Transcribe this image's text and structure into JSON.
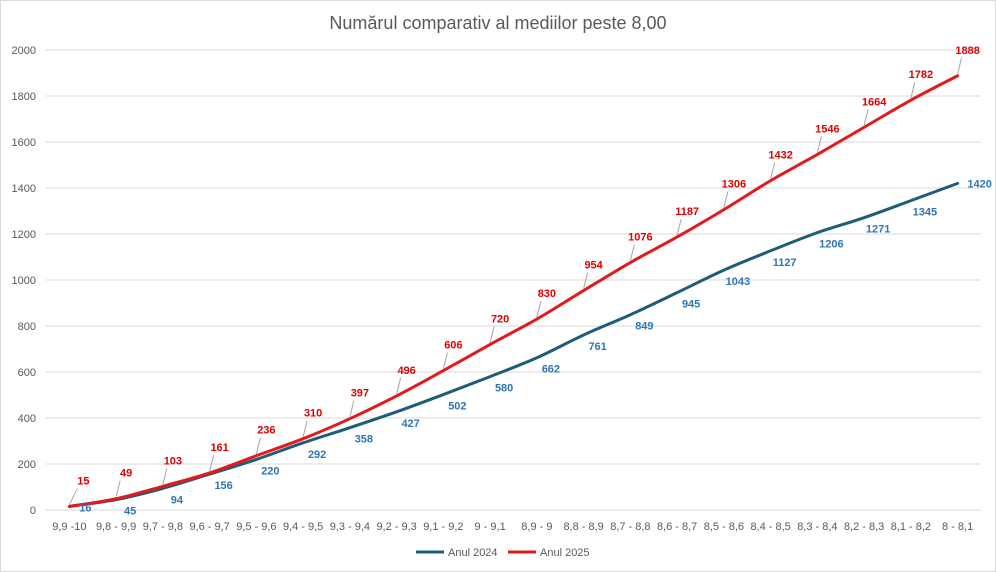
{
  "chart_data": {
    "type": "line",
    "title": "Numărul comparativ al mediilor peste 8,00",
    "xlabel": "",
    "ylabel": "",
    "ylim": [
      0,
      2000
    ],
    "yticks": [
      0,
      200,
      400,
      600,
      800,
      1000,
      1200,
      1400,
      1600,
      1800,
      2000
    ],
    "categories": [
      "9,9 -10",
      "9,8 - 9,9",
      "9,7 - 9,8",
      "9,6 - 9,7",
      "9,5 - 9,6",
      "9,4 - 9,5",
      "9,3 - 9,4",
      "9,2 - 9,3",
      "9,1 - 9,2",
      "9 - 9,1",
      "8,9 - 9",
      "8,8 - 8,9",
      "8,7 - 8,8",
      "8,6 - 8,7",
      "8,5 - 8,6",
      "8,4 - 8,5",
      "8,3 - 8,4",
      "8,2 - 8,3",
      "8,1 - 8,2",
      "8 - 8,1"
    ],
    "series": [
      {
        "name": "Anul 2024",
        "color": "#1f5c7a",
        "label_color": "#2e75b6",
        "values": [
          16,
          45,
          94,
          156,
          220,
          292,
          358,
          427,
          502,
          580,
          662,
          761,
          849,
          945,
          1043,
          1127,
          1206,
          1271,
          1345,
          1420
        ]
      },
      {
        "name": "Anul 2025",
        "color": "#e31a1c",
        "label_color": "#e00000",
        "values": [
          15,
          49,
          103,
          161,
          236,
          310,
          397,
          496,
          606,
          720,
          830,
          954,
          1076,
          1187,
          1306,
          1432,
          1546,
          1664,
          1782,
          1888
        ]
      }
    ],
    "legend_position": "bottom"
  }
}
